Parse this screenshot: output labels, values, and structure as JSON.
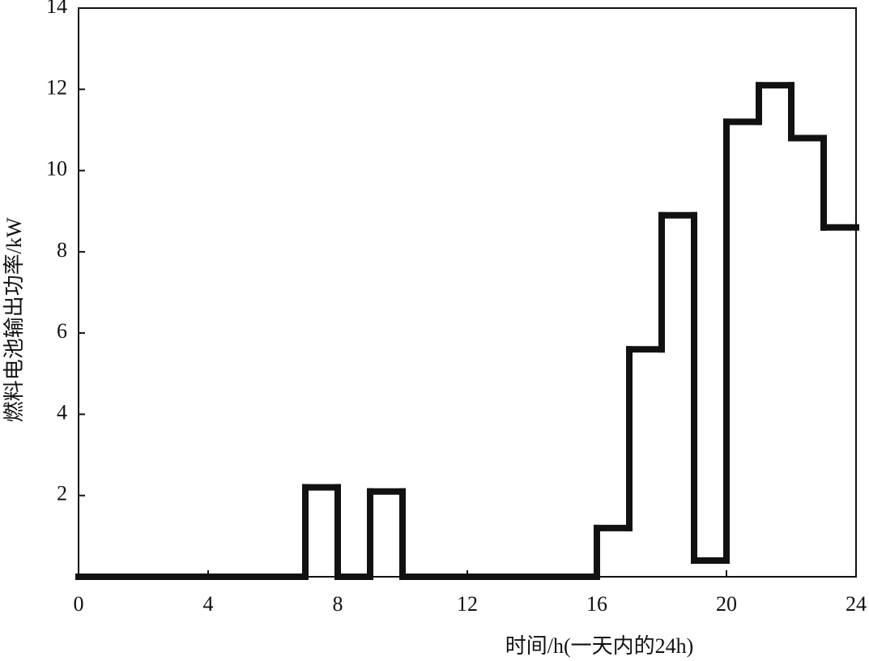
{
  "chart_data": {
    "type": "step",
    "xlabel": "时间/h(一天内的24h)",
    "ylabel": "燃料电池输出功率/kW",
    "x": [
      0,
      1,
      2,
      3,
      4,
      5,
      6,
      7,
      8,
      9,
      10,
      11,
      12,
      13,
      14,
      15,
      16,
      17,
      18,
      19,
      20,
      21,
      22,
      23
    ],
    "values": [
      0,
      0,
      0,
      0,
      0,
      0,
      0,
      2.2,
      0,
      2.1,
      0,
      0,
      0,
      0,
      0,
      0,
      1.2,
      5.6,
      8.9,
      0.4,
      11.2,
      12.1,
      10.8,
      8.6
    ],
    "color": "#111111",
    "xlim": [
      0,
      24
    ],
    "xticks": [
      0,
      4,
      8,
      12,
      16,
      20,
      24
    ],
    "ylim": [
      0,
      14
    ],
    "yticks": [
      2,
      4,
      6,
      8,
      10,
      12,
      14
    ]
  }
}
